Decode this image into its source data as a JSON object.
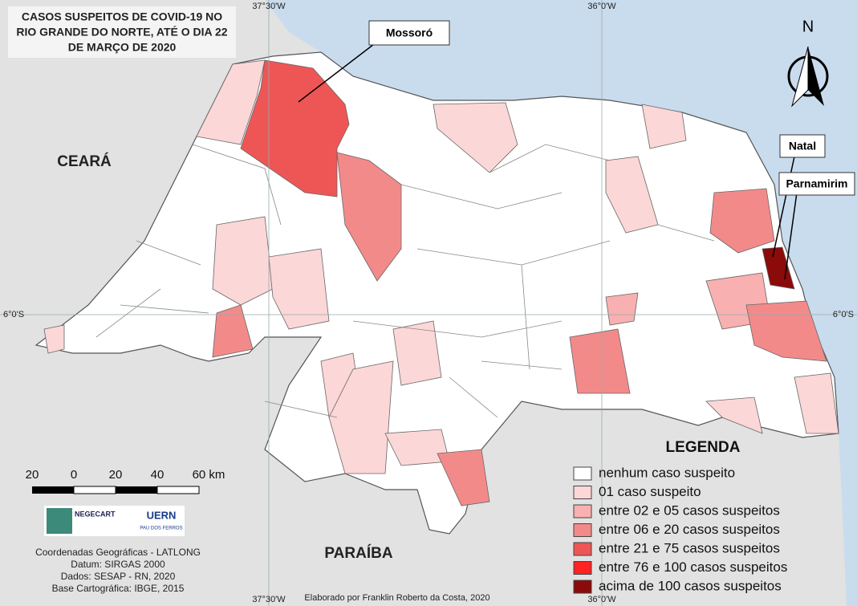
{
  "title": [
    "CASOS SUSPEITOS DE COVID-19 NO",
    "RIO GRANDE DO NORTE, ATÉ O DIA 22",
    "DE MARÇO DE 2020"
  ],
  "callouts": [
    "Mossoró",
    "Natal",
    "Parnamirim"
  ],
  "regions": [
    "CEARÁ",
    "PARAÍBA"
  ],
  "coordinates": {
    "top": [
      "37°30'W",
      "36°0'W"
    ],
    "bottom": [
      "37°30'W",
      "36°0'W"
    ],
    "left": "6°0'S",
    "right": "6°0'S"
  },
  "north": "N",
  "legend": {
    "title": "LEGENDA",
    "items": [
      {
        "label": "nenhum caso suspeito",
        "color": "#ffffff"
      },
      {
        "label": "01 caso suspeito",
        "color": "#fcd7d7"
      },
      {
        "label": "entre 02 e 05 casos suspeitos",
        "color": "#f8b0b0"
      },
      {
        "label": "entre 06 e 20 casos suspeitos",
        "color": "#f38a8a"
      },
      {
        "label": "entre 21 e 75 casos suspeitos",
        "color": "#ee5656"
      },
      {
        "label": "entre 76 e 100 casos suspeitos",
        "color": "#ff2222"
      },
      {
        "label": "acima de 100 casos suspeitos",
        "color": "#8b0a0a"
      }
    ]
  },
  "scale": [
    "20",
    "0",
    "20",
    "40",
    "60 km"
  ],
  "logos": [
    "NEGECART",
    "UERN",
    "PAU DOS FERROS"
  ],
  "credits": [
    "Coordenadas Geográficas - LATLONG",
    "Datum: SIRGAS 2000",
    "Dados: SESAP - RN, 2020",
    "Base Cartográfica: IBGE, 2015"
  ],
  "author": "Elaborado por Franklin Roberto da Costa, 2020"
}
